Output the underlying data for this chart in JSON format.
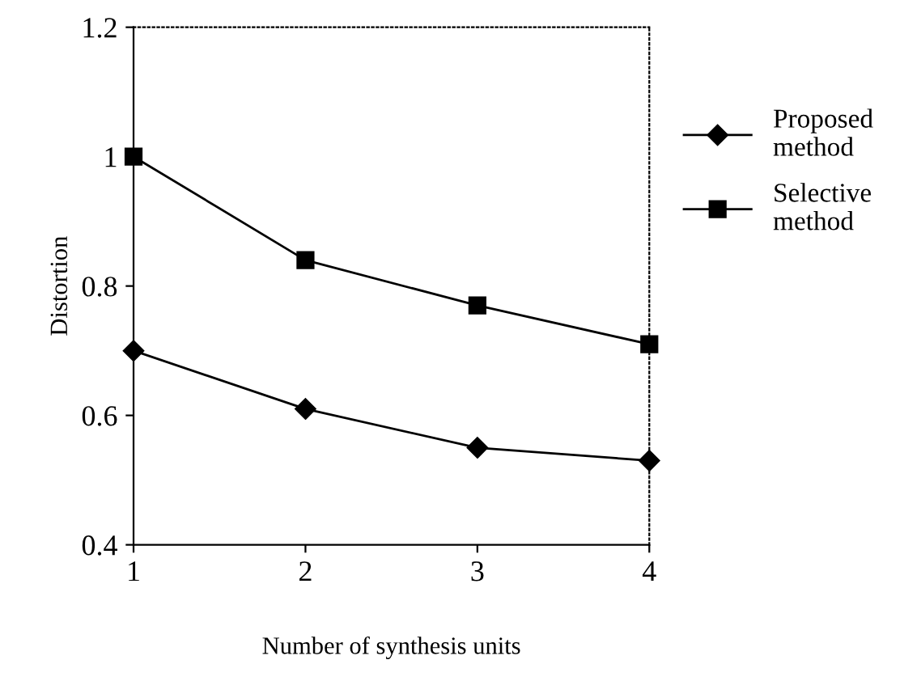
{
  "chart_data": {
    "type": "line",
    "xlabel": "Number of synthesis units",
    "ylabel": "Distortion",
    "x": [
      1,
      2,
      3,
      4
    ],
    "xlim": [
      1,
      4
    ],
    "xticks": [
      1,
      2,
      3,
      4
    ],
    "ylim": [
      0.4,
      1.2
    ],
    "yticks": [
      0.4,
      0.6,
      0.8,
      {
        "value": 1,
        "label": "1"
      },
      1.2
    ],
    "legend": "right",
    "grid": false,
    "line_style": "solid",
    "series": [
      {
        "name": "Proposed\nmethod",
        "color": "#000000",
        "marker": "diamond",
        "values": [
          0.7,
          0.61,
          0.55,
          0.53
        ]
      },
      {
        "name": "Selective\nmethod",
        "color": "#000000",
        "marker": "square",
        "values": [
          1.0,
          0.84,
          0.77,
          0.71
        ]
      }
    ]
  }
}
